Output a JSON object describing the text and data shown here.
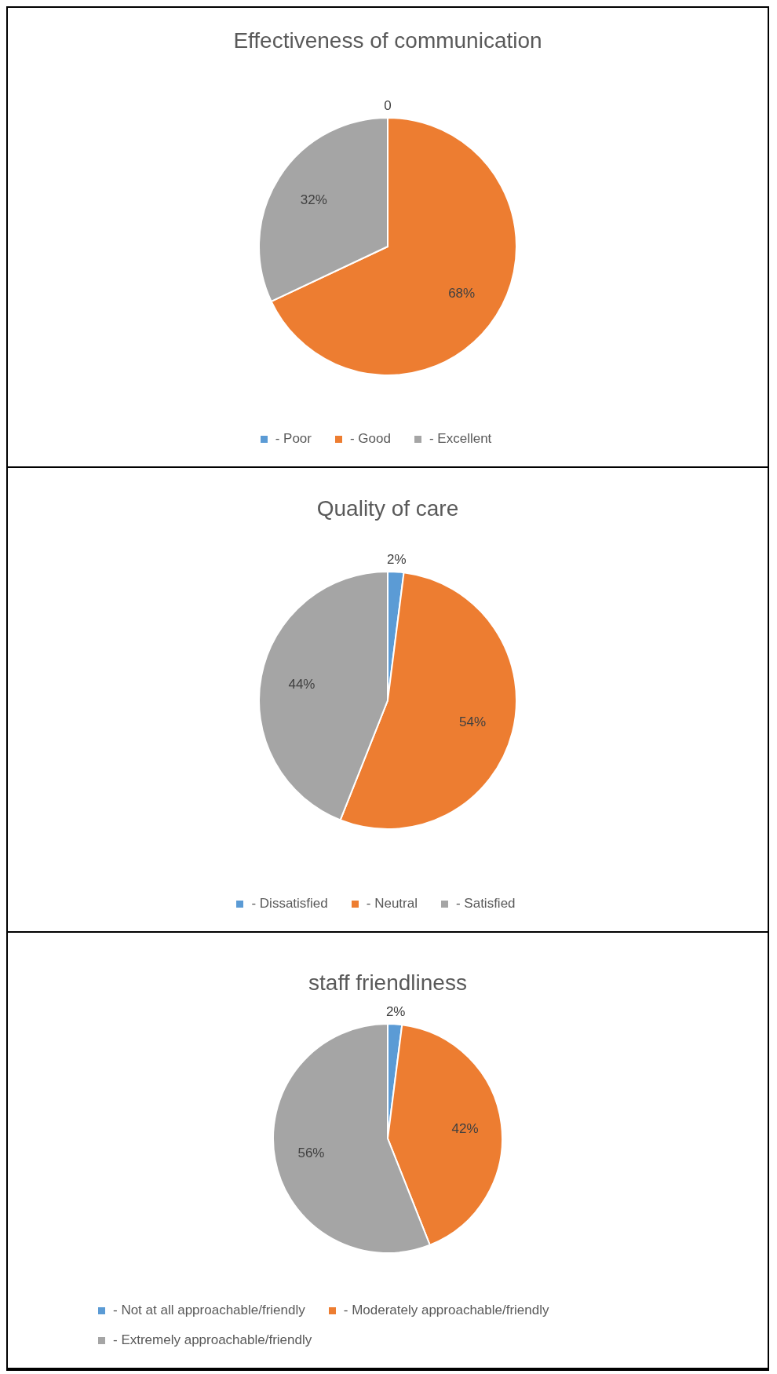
{
  "chart_data": [
    {
      "type": "pie",
      "title": "Effectiveness of communication",
      "categories": [
        "- Poor",
        "- Good",
        "- Excellent"
      ],
      "values": [
        0,
        68,
        32
      ],
      "value_labels": [
        "0",
        "68%",
        "32%"
      ],
      "colors": [
        "#5b9bd5",
        "#ed7d31",
        "#a5a5a5"
      ],
      "legend": "bottom"
    },
    {
      "type": "pie",
      "title": "Quality of care",
      "categories": [
        "- Dissatisfied",
        "- Neutral",
        "- Satisfied"
      ],
      "values": [
        2,
        54,
        44
      ],
      "value_labels": [
        "2%",
        "54%",
        "44%"
      ],
      "colors": [
        "#5b9bd5",
        "#ed7d31",
        "#a5a5a5"
      ],
      "legend": "bottom"
    },
    {
      "type": "pie",
      "title": "staff friendliness",
      "categories": [
        "- Not at all approachable/friendly",
        "- Moderately approachable/friendly",
        "- Extremely approachable/friendly"
      ],
      "values": [
        2,
        42,
        56
      ],
      "value_labels": [
        "2%",
        "42%",
        "56%"
      ],
      "colors": [
        "#5b9bd5",
        "#ed7d31",
        "#a5a5a5"
      ],
      "legend": "bottom"
    }
  ]
}
